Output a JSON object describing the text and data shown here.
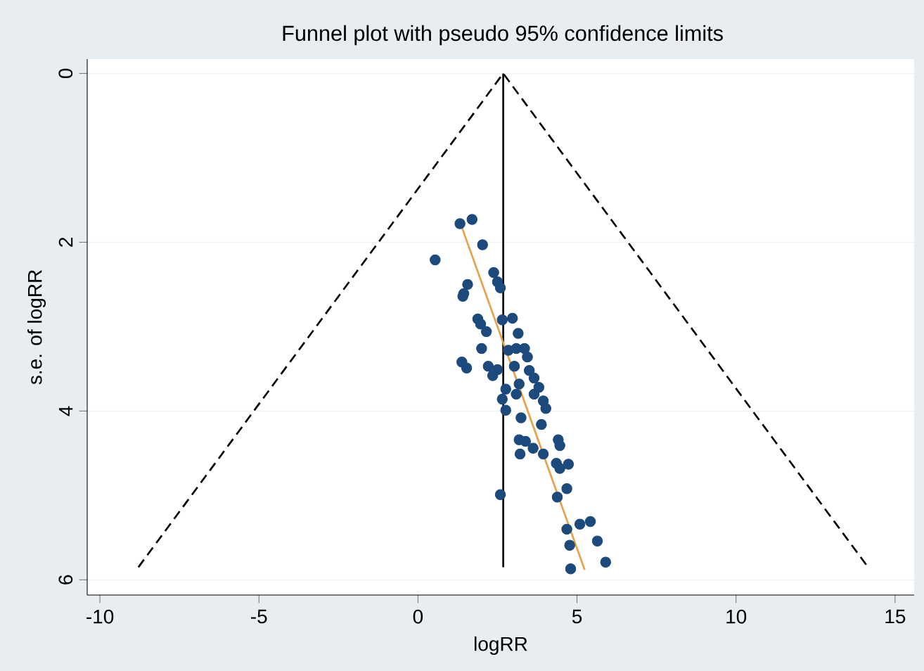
{
  "chart_data": {
    "type": "scatter",
    "title": "Funnel plot with pseudo 95% confidence limits",
    "xlabel": "logRR",
    "ylabel": "s.e. of logRR",
    "xlim": [
      -10.4,
      15.6
    ],
    "ylim": [
      6.18,
      -0.17
    ],
    "xticks": [
      -10,
      -5,
      0,
      5,
      10,
      15
    ],
    "yticks": [
      0,
      2,
      4,
      6
    ],
    "grid": "y",
    "series": [
      {
        "type": "line",
        "color": "#000000",
        "line_style": "dashed",
        "marker": "none",
        "x": [
          -8.79,
          2.68,
          14.15
        ],
        "values": [
          5.85,
          0,
          5.85
        ]
      },
      {
        "type": "line",
        "color": "#000000",
        "line_style": "solid",
        "marker": "none",
        "x": [
          2.68,
          2.68
        ],
        "values": [
          0,
          5.85
        ]
      },
      {
        "type": "scatter",
        "color": "#1c4a7c",
        "marker": "circle",
        "x": [
          1.32,
          1.7,
          2.03,
          0.54,
          2.38,
          2.5,
          2.59,
          1.56,
          1.44,
          1.41,
          1.88,
          1.97,
          2.15,
          2.65,
          2.97,
          3.15,
          2.0,
          2.84,
          3.09,
          3.35,
          3.44,
          1.38,
          1.53,
          2.21,
          2.5,
          3.03,
          3.5,
          2.35,
          3.65,
          3.8,
          2.76,
          3.18,
          2.65,
          2.76,
          3.09,
          3.65,
          3.94,
          4.02,
          3.24,
          3.88,
          3.18,
          3.38,
          3.21,
          3.62,
          3.94,
          4.41,
          4.46,
          4.35,
          4.46,
          4.73,
          4.68,
          4.38,
          2.59,
          4.68,
          5.09,
          5.42,
          5.64,
          4.77,
          5.9,
          4.8
        ],
        "values": [
          1.78,
          1.73,
          2.03,
          2.21,
          2.36,
          2.47,
          2.54,
          2.5,
          2.61,
          2.64,
          2.91,
          2.97,
          3.06,
          2.92,
          2.9,
          3.08,
          3.26,
          3.28,
          3.26,
          3.26,
          3.36,
          3.42,
          3.49,
          3.47,
          3.51,
          3.47,
          3.52,
          3.58,
          3.61,
          3.72,
          3.74,
          3.68,
          3.86,
          3.99,
          3.8,
          3.8,
          3.88,
          3.97,
          4.08,
          4.16,
          4.34,
          4.36,
          4.51,
          4.44,
          4.51,
          4.34,
          4.41,
          4.62,
          4.68,
          4.63,
          4.92,
          5.02,
          4.99,
          5.4,
          5.34,
          5.31,
          5.54,
          5.59,
          5.79,
          5.87
        ]
      },
      {
        "type": "line",
        "color": "#e8a04a",
        "line_style": "solid",
        "marker": "none",
        "x": [
          1.31,
          5.24
        ],
        "values": [
          1.75,
          5.88
        ]
      }
    ]
  }
}
